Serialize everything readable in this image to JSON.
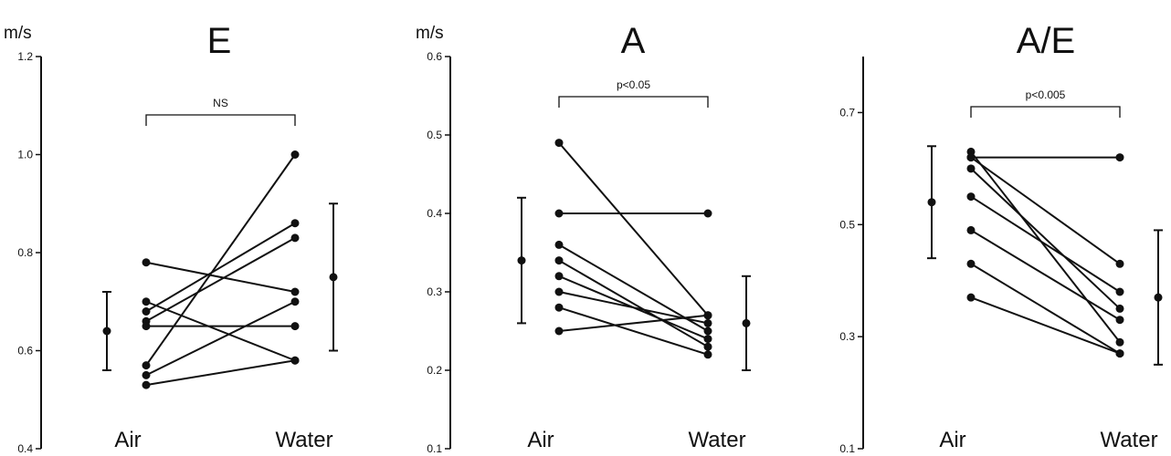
{
  "chart_data": [
    {
      "type": "line",
      "title": "E",
      "unit": "m/s",
      "ylim": [
        0.4,
        1.2
      ],
      "yticks": [
        "0.4",
        "0.6",
        "0.8",
        "1.0",
        "1.2"
      ],
      "categories": [
        "Air",
        "Water"
      ],
      "significance": "NS",
      "pairs": [
        [
          0.78,
          0.72
        ],
        [
          0.7,
          0.58
        ],
        [
          0.68,
          0.86
        ],
        [
          0.66,
          0.83
        ],
        [
          0.65,
          0.65
        ],
        [
          0.57,
          1.0
        ],
        [
          0.55,
          0.7
        ],
        [
          0.53,
          0.58
        ]
      ],
      "air_mean_sd": {
        "mean": 0.64,
        "low": 0.56,
        "high": 0.72
      },
      "water_mean_sd": {
        "mean": 0.75,
        "low": 0.6,
        "high": 0.9
      }
    },
    {
      "type": "line",
      "title": "A",
      "unit": "m/s",
      "ylim": [
        0.1,
        0.6
      ],
      "yticks": [
        "0.1",
        "0.2",
        "0.3",
        "0.4",
        "0.5",
        "0.6"
      ],
      "categories": [
        "Air",
        "Water"
      ],
      "significance": "p<0.05",
      "pairs": [
        [
          0.49,
          0.27
        ],
        [
          0.4,
          0.4
        ],
        [
          0.36,
          0.25
        ],
        [
          0.34,
          0.23
        ],
        [
          0.32,
          0.24
        ],
        [
          0.3,
          0.26
        ],
        [
          0.28,
          0.22
        ],
        [
          0.25,
          0.27
        ]
      ],
      "air_mean_sd": {
        "mean": 0.34,
        "low": 0.26,
        "high": 0.42
      },
      "water_mean_sd": {
        "mean": 0.26,
        "low": 0.2,
        "high": 0.32
      }
    },
    {
      "type": "line",
      "title": "A/E",
      "unit": "",
      "ylim": [
        0.1,
        0.8
      ],
      "yticks": [
        "0.1",
        "0.3",
        "0.5",
        "0.7"
      ],
      "categories": [
        "Air",
        "Water"
      ],
      "significance": "p<0.005",
      "pairs": [
        [
          0.63,
          0.29
        ],
        [
          0.62,
          0.62
        ],
        [
          0.6,
          0.35
        ],
        [
          0.55,
          0.38
        ],
        [
          0.49,
          0.33
        ],
        [
          0.43,
          0.27
        ],
        [
          0.37,
          0.27
        ],
        [
          0.62,
          0.43
        ]
      ],
      "air_mean_sd": {
        "mean": 0.54,
        "low": 0.44,
        "high": 0.64
      },
      "water_mean_sd": {
        "mean": 0.37,
        "low": 0.25,
        "high": 0.49
      }
    }
  ]
}
